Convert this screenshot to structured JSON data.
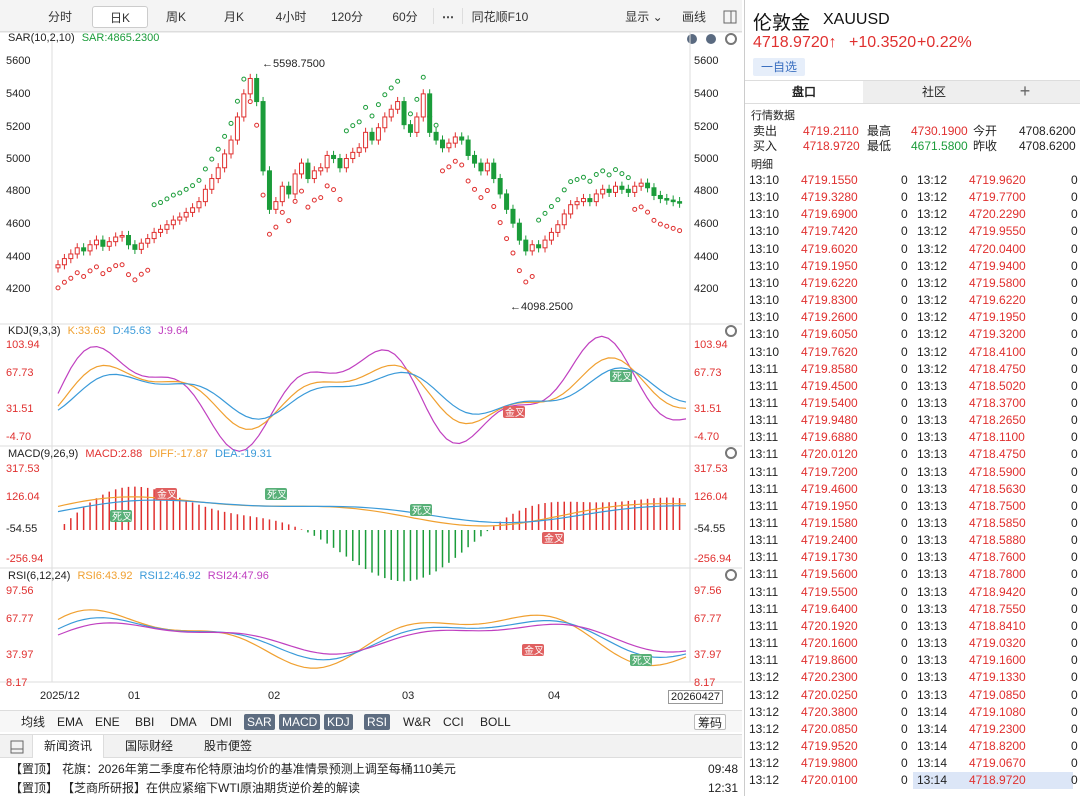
{
  "period_tabs": [
    "分时",
    "日K",
    "周K",
    "月K",
    "4小时",
    "120分",
    "60分"
  ],
  "more_icon": "⋯",
  "f10_label": "同花顺F10",
  "display_label": "显示",
  "draw_label": "画线",
  "colors": {
    "up": "#e0302f",
    "down": "#1b9c3a",
    "k": "#f0a030",
    "d": "#3a9ad9",
    "j": "#c040c0",
    "bg": "#ffffff"
  },
  "sar": {
    "title": "SAR(10,2,10)",
    "value": "SAR:4865.2300",
    "yticks": [
      "5600",
      "5400",
      "5200",
      "5000",
      "4800",
      "4600",
      "4400",
      "4200"
    ],
    "high_note": "←5598.7500",
    "low_note": "←4098.2500"
  },
  "kdj": {
    "title": "KDJ(9,3,3)",
    "k": "K:33.63",
    "d": "D:45.63",
    "j": "J:9.64",
    "yticks": [
      "103.94",
      "67.73",
      "31.51",
      "-4.70"
    ],
    "badges": [
      "死叉",
      "金叉"
    ]
  },
  "macd": {
    "title": "MACD(9,26,9)",
    "macd": "MACD:2.88",
    "diff": "DIFF:-17.87",
    "dea": "DEA:-19.31",
    "yticks": [
      "317.53",
      "126.04",
      "-54.55",
      "-256.94"
    ],
    "badges": [
      "死叉",
      "金叉",
      "死叉",
      "死叉",
      "金叉"
    ]
  },
  "rsi": {
    "title": "RSI(6,12,24)",
    "r6": "RSI6:43.92",
    "r12": "RSI12:46.92",
    "r24": "RSI24:47.96",
    "yticks": [
      "97.56",
      "67.77",
      "37.97",
      "8.17"
    ],
    "badges": [
      "金叉",
      "死叉"
    ]
  },
  "xaxis": [
    "2025/12",
    "01",
    "02",
    "03",
    "04",
    "20260427"
  ],
  "indicator_tabs": [
    "均线",
    "EMA",
    "ENE",
    "BBI",
    "DMA",
    "DMI",
    "SAR",
    "MACD",
    "KDJ",
    "RSI",
    "W&R",
    "CCI",
    "BOLL"
  ],
  "indicator_active": [
    "SAR",
    "MACD",
    "KDJ",
    "RSI"
  ],
  "chip_label": "筹码",
  "news_tabs": [
    "新闻资讯",
    "国际财经",
    "股市便签"
  ],
  "news": [
    {
      "tag": "【置顶】",
      "text": "花旗：2026年第二季度布伦特原油均价的基准情景预测上调至每桶110美元",
      "time": "09:48"
    },
    {
      "tag": "【置顶】",
      "text": "【芝商所研报】在供应紧缩下WTI原油期货逆价差的解读",
      "time": "12:31"
    }
  ],
  "quote": {
    "name": "伦敦金",
    "code": "XAUUSD",
    "price": "4718.9720↑",
    "change": "+10.3520",
    "pct": "+0.22%",
    "watch": "一自选",
    "tabs": [
      "盘口",
      "社区"
    ],
    "add_icon": "+",
    "market_title": "行情数据",
    "rows": [
      {
        "l1": "卖出",
        "v1": "4719.2110",
        "l2": "最高",
        "v2": "4730.1900",
        "l3": "今开",
        "v3": "4708.6200"
      },
      {
        "l1": "买入",
        "v1": "4718.9720",
        "l2": "最低",
        "v2": "4671.5800",
        "l3": "昨收",
        "v3": "4708.6200"
      }
    ],
    "detail_title": "明细",
    "ticks_left": [
      [
        "13:10",
        "4719.1550",
        "0"
      ],
      [
        "13:10",
        "4719.3280",
        "0"
      ],
      [
        "13:10",
        "4719.6900",
        "0"
      ],
      [
        "13:10",
        "4719.7420",
        "0"
      ],
      [
        "13:10",
        "4719.6020",
        "0"
      ],
      [
        "13:10",
        "4719.1950",
        "0"
      ],
      [
        "13:10",
        "4719.6220",
        "0"
      ],
      [
        "13:10",
        "4719.8300",
        "0"
      ],
      [
        "13:10",
        "4719.2600",
        "0"
      ],
      [
        "13:10",
        "4719.6050",
        "0"
      ],
      [
        "13:10",
        "4719.7620",
        "0"
      ],
      [
        "13:11",
        "4719.8580",
        "0"
      ],
      [
        "13:11",
        "4719.4500",
        "0"
      ],
      [
        "13:11",
        "4719.5400",
        "0"
      ],
      [
        "13:11",
        "4719.9480",
        "0"
      ],
      [
        "13:11",
        "4719.6880",
        "0"
      ],
      [
        "13:11",
        "4720.0120",
        "0"
      ],
      [
        "13:11",
        "4719.7200",
        "0"
      ],
      [
        "13:11",
        "4719.4600",
        "0"
      ],
      [
        "13:11",
        "4719.1950",
        "0"
      ],
      [
        "13:11",
        "4719.1580",
        "0"
      ],
      [
        "13:11",
        "4719.2400",
        "0"
      ],
      [
        "13:11",
        "4719.1730",
        "0"
      ],
      [
        "13:11",
        "4719.5600",
        "0"
      ],
      [
        "13:11",
        "4719.5500",
        "0"
      ],
      [
        "13:11",
        "4719.6400",
        "0"
      ],
      [
        "13:11",
        "4720.1920",
        "0"
      ],
      [
        "13:11",
        "4720.1600",
        "0"
      ],
      [
        "13:11",
        "4719.8600",
        "0"
      ],
      [
        "13:12",
        "4720.2300",
        "0"
      ],
      [
        "13:12",
        "4720.0250",
        "0"
      ],
      [
        "13:12",
        "4720.3800",
        "0"
      ],
      [
        "13:12",
        "4720.0850",
        "0"
      ],
      [
        "13:12",
        "4719.9520",
        "0"
      ],
      [
        "13:12",
        "4719.9800",
        "0"
      ],
      [
        "13:12",
        "4720.0100",
        "0"
      ]
    ],
    "ticks_right": [
      [
        "13:12",
        "4719.9620",
        "0"
      ],
      [
        "13:12",
        "4719.7700",
        "0"
      ],
      [
        "13:12",
        "4720.2290",
        "0"
      ],
      [
        "13:12",
        "4719.9550",
        "0"
      ],
      [
        "13:12",
        "4720.0400",
        "0"
      ],
      [
        "13:12",
        "4719.9400",
        "0"
      ],
      [
        "13:12",
        "4719.5800",
        "0"
      ],
      [
        "13:12",
        "4719.6220",
        "0"
      ],
      [
        "13:12",
        "4719.1950",
        "0"
      ],
      [
        "13:12",
        "4719.3200",
        "0"
      ],
      [
        "13:12",
        "4718.4100",
        "0"
      ],
      [
        "13:12",
        "4718.4750",
        "0"
      ],
      [
        "13:13",
        "4718.5020",
        "0"
      ],
      [
        "13:13",
        "4718.3700",
        "0"
      ],
      [
        "13:13",
        "4718.2650",
        "0"
      ],
      [
        "13:13",
        "4718.1100",
        "0"
      ],
      [
        "13:13",
        "4718.4750",
        "0"
      ],
      [
        "13:13",
        "4718.5900",
        "0"
      ],
      [
        "13:13",
        "4718.5630",
        "0"
      ],
      [
        "13:13",
        "4718.7500",
        "0"
      ],
      [
        "13:13",
        "4718.5850",
        "0"
      ],
      [
        "13:13",
        "4718.5880",
        "0"
      ],
      [
        "13:13",
        "4718.7600",
        "0"
      ],
      [
        "13:13",
        "4718.7800",
        "0"
      ],
      [
        "13:13",
        "4718.9420",
        "0"
      ],
      [
        "13:13",
        "4718.7550",
        "0"
      ],
      [
        "13:13",
        "4718.8410",
        "0"
      ],
      [
        "13:13",
        "4719.0320",
        "0"
      ],
      [
        "13:13",
        "4719.1600",
        "0"
      ],
      [
        "13:13",
        "4719.1330",
        "0"
      ],
      [
        "13:13",
        "4719.0850",
        "0"
      ],
      [
        "13:14",
        "4719.1080",
        "0"
      ],
      [
        "13:14",
        "4719.2300",
        "0"
      ],
      [
        "13:14",
        "4718.8200",
        "0"
      ],
      [
        "13:14",
        "4719.0670",
        "0"
      ],
      [
        "13:14",
        "4718.9720",
        "0"
      ]
    ]
  }
}
